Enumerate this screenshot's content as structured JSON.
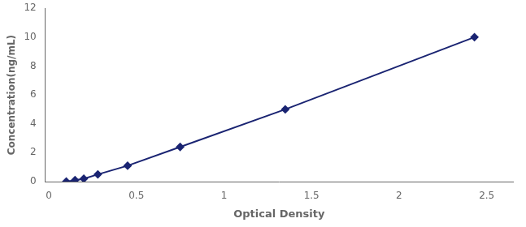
{
  "chart_data": {
    "type": "line",
    "x": [
      0.1,
      0.15,
      0.2,
      0.28,
      0.45,
      0.75,
      1.35,
      2.43
    ],
    "values": [
      0.0,
      0.1,
      0.2,
      0.5,
      1.1,
      2.4,
      5.0,
      10.0
    ],
    "color": "#1a2472",
    "marker": "diamond",
    "xlabel": "Optical Density",
    "ylabel": "Concentration(ng/mL)",
    "xlim": [
      -0.02,
      2.65
    ],
    "ylim": [
      0,
      12
    ],
    "xticks": [
      0,
      0.5,
      1,
      1.5,
      2,
      2.5
    ],
    "yticks": [
      0,
      2,
      4,
      6,
      8,
      10,
      12
    ],
    "grid": false
  }
}
